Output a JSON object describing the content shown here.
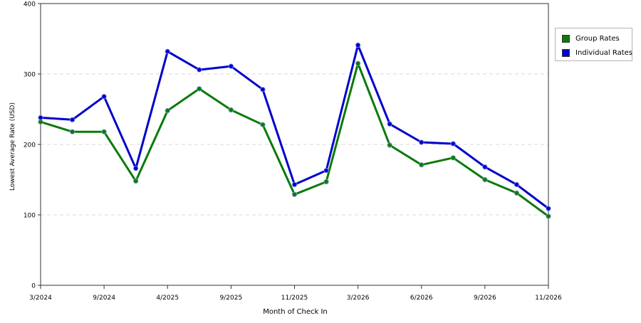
{
  "chart_data": {
    "type": "line",
    "title": "",
    "xlabel": "Month of Check In",
    "ylabel": "Lowest Average Rate (USD)",
    "ylim": [
      0,
      400
    ],
    "yticks": [
      0,
      100,
      200,
      300,
      400
    ],
    "x_tick_labels": [
      "3/2024",
      "9/2024",
      "4/2025",
      "9/2025",
      "11/2025",
      "3/2026",
      "6/2026",
      "9/2026",
      "11/2026"
    ],
    "grid": "horizontal dashed",
    "legend_position": "right",
    "series": [
      {
        "name": "Group Rates",
        "color": "#0a7a0a",
        "values": [
          232,
          218,
          218,
          148,
          248,
          279,
          249,
          228,
          129,
          147,
          315,
          199,
          171,
          181,
          150,
          131,
          98
        ]
      },
      {
        "name": "Individual Rates",
        "color": "#0000cc",
        "values": [
          238,
          235,
          268,
          166,
          332,
          306,
          311,
          278,
          143,
          163,
          341,
          229,
          203,
          201,
          168,
          143,
          109
        ]
      }
    ]
  }
}
